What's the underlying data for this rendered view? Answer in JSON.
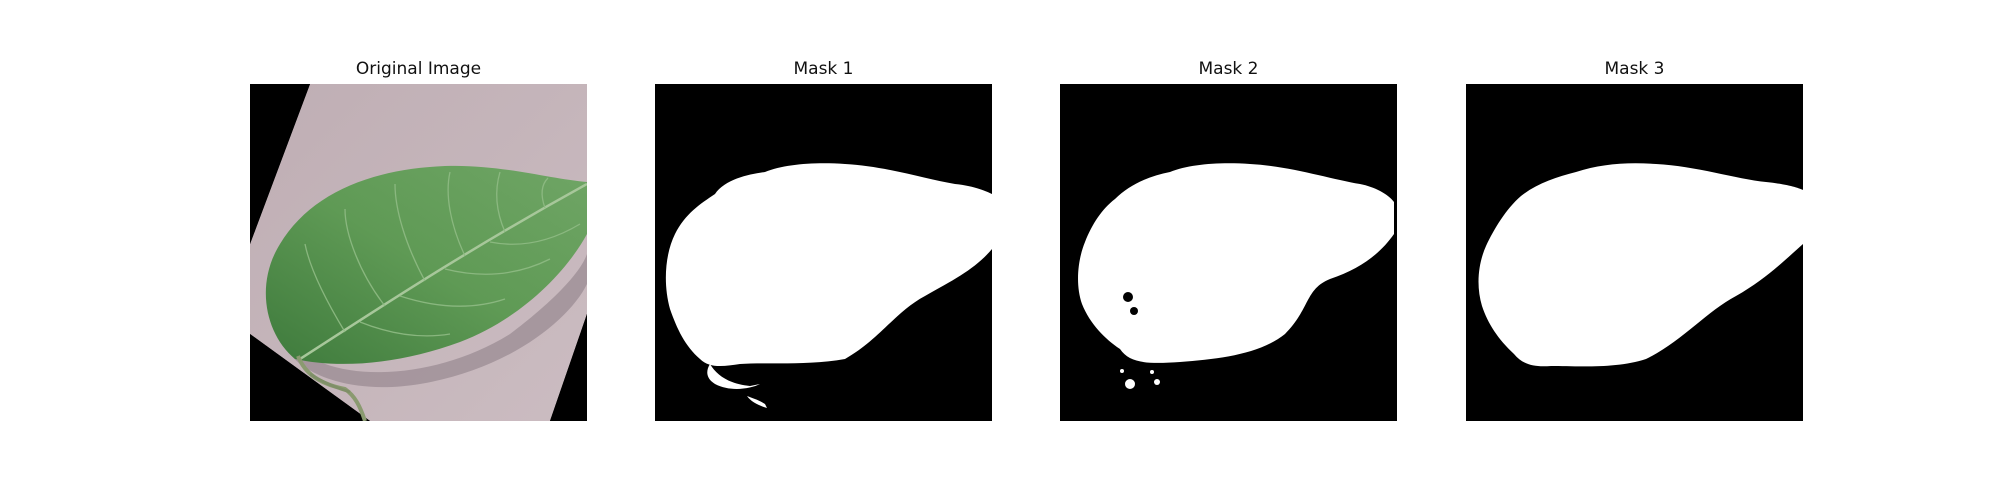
{
  "figure": {
    "panels": [
      {
        "title": "Original Image"
      },
      {
        "title": "Mask 1"
      },
      {
        "title": "Mask 2"
      },
      {
        "title": "Mask 3"
      }
    ]
  },
  "colors": {
    "background": "#000000",
    "mask_foreground": "#ffffff",
    "surface": "#c7b7bd",
    "leaf_dark": "#3e7a3c",
    "leaf_mid": "#5f9a55",
    "leaf_light": "#7fb07a"
  }
}
